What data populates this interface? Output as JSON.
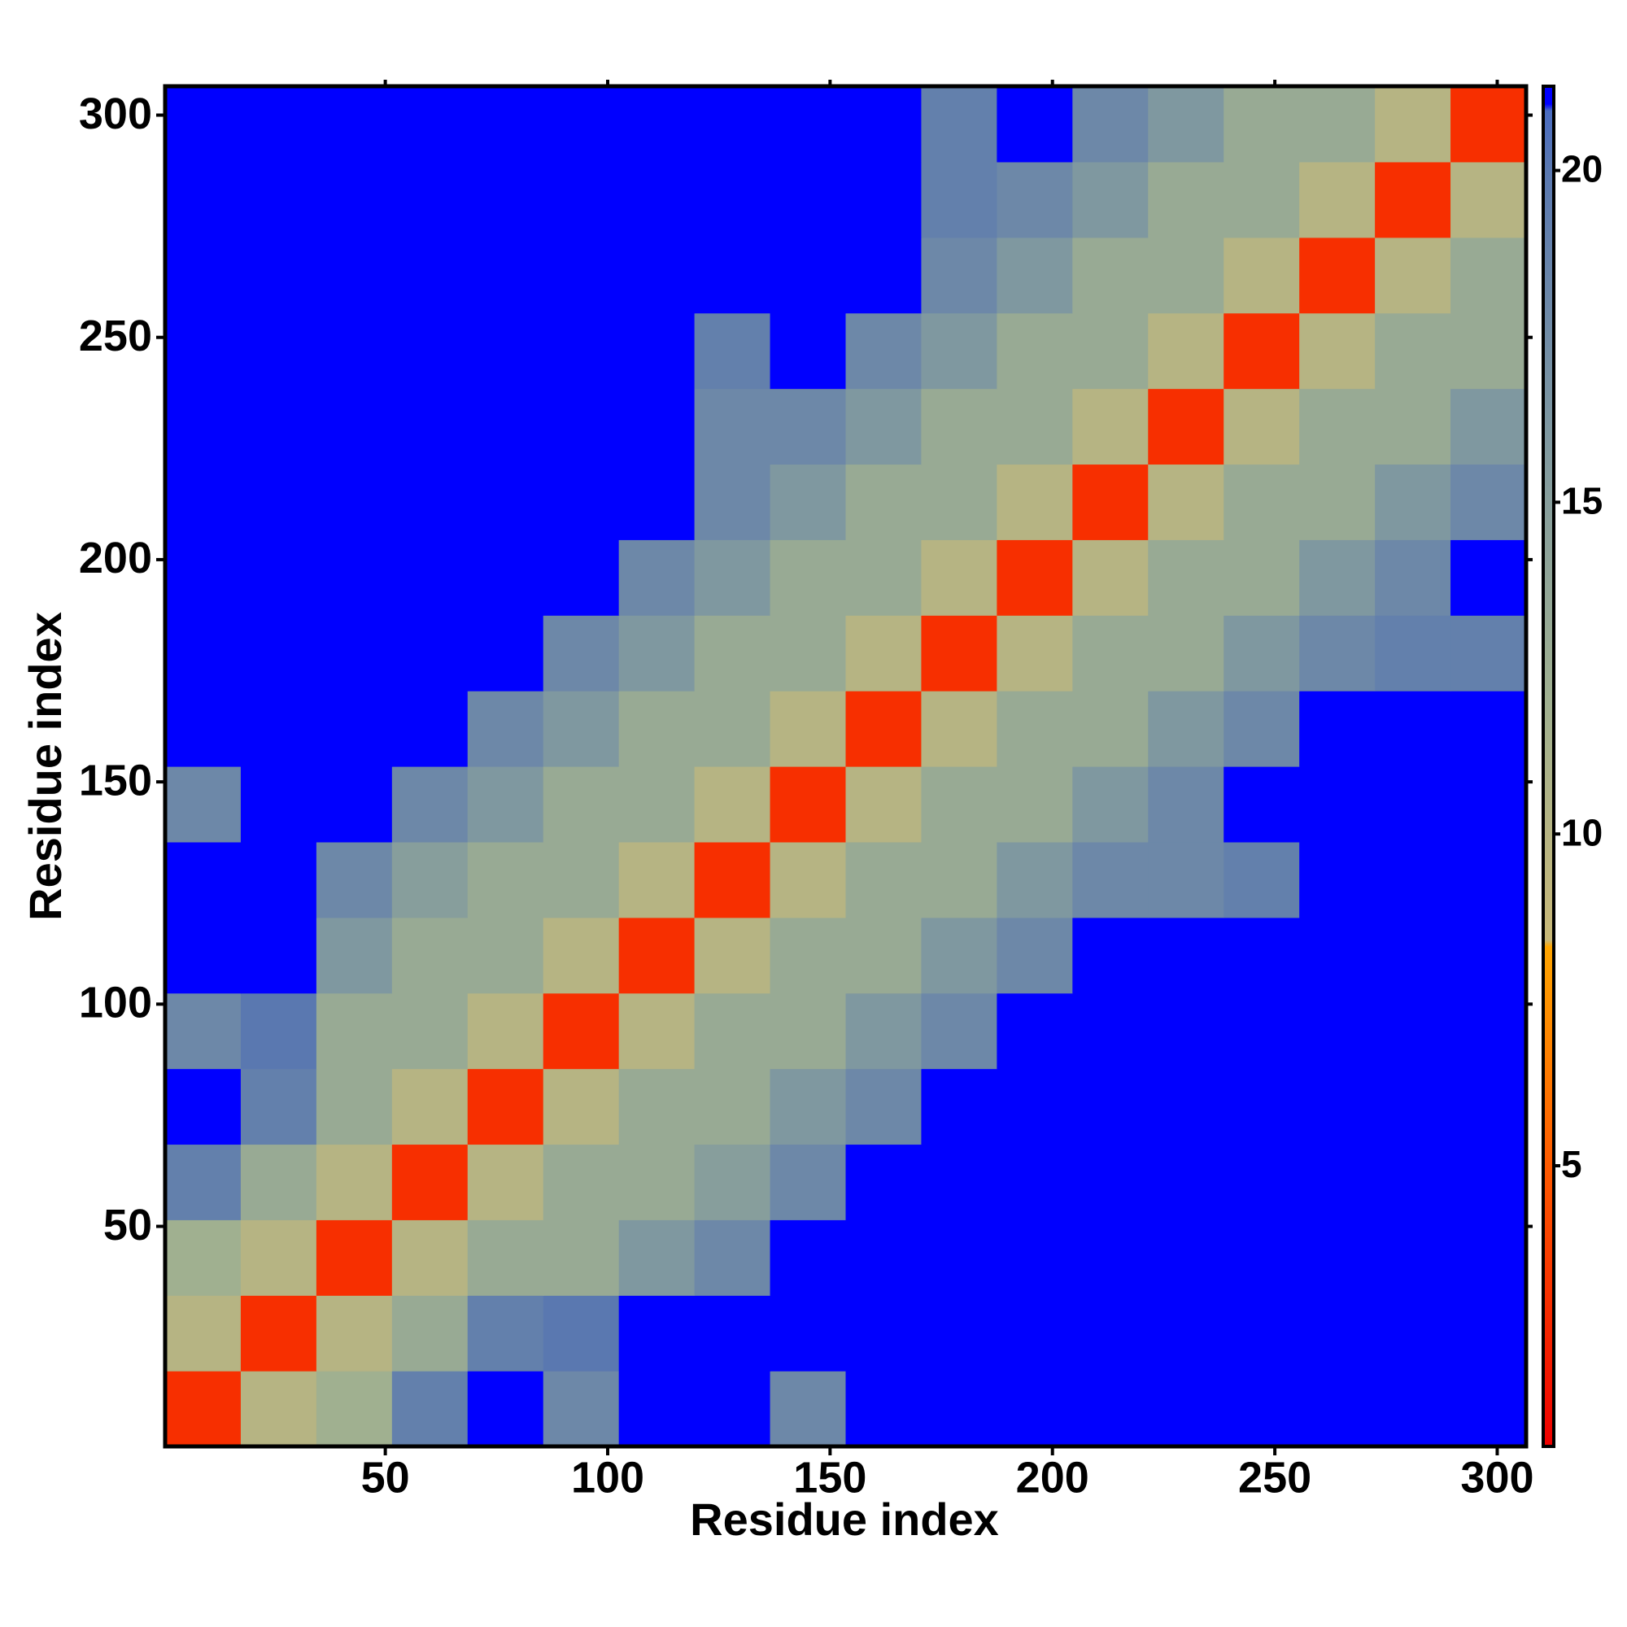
{
  "chart_data": {
    "type": "heatmap",
    "xlabel": "Residue index",
    "ylabel": "Residue index",
    "x_bins": [
      0.5,
      17.5,
      34.5,
      51.5,
      68.5,
      85.5,
      102.5,
      119.5,
      136.5,
      153.5,
      170.5,
      187.5,
      204.5,
      221.5,
      238.5,
      255.5,
      272.5,
      289.5,
      306.5
    ],
    "y_bins": [
      0.5,
      17.5,
      34.5,
      51.5,
      68.5,
      85.5,
      102.5,
      119.5,
      136.5,
      153.5,
      170.5,
      187.5,
      204.5,
      221.5,
      238.5,
      255.5,
      272.5,
      289.5,
      306.5
    ],
    "z": [
      [
        3,
        10,
        12,
        19,
        21.2,
        18,
        21.2,
        21.2,
        18,
        21.2,
        21.2,
        21.2,
        21.2,
        21.2,
        21.2,
        21.2,
        21.2,
        21.2
      ],
      [
        10,
        3,
        10,
        13,
        19,
        20,
        21.2,
        21.2,
        21.2,
        21.2,
        21.2,
        21.2,
        21.2,
        21.2,
        21.2,
        21.2,
        21.2,
        21.2
      ],
      [
        12,
        10,
        3,
        10,
        13,
        13,
        16,
        18,
        21.2,
        21.2,
        21.2,
        21.2,
        21.2,
        21.2,
        21.2,
        21.2,
        21.2,
        21.2
      ],
      [
        19,
        13,
        10,
        3,
        10,
        13,
        13,
        15,
        18,
        21.2,
        21.2,
        21.2,
        21.2,
        21.2,
        21.2,
        21.2,
        21.2,
        21.2
      ],
      [
        21.2,
        19,
        13,
        10,
        3,
        10,
        13,
        13,
        16,
        18,
        21.2,
        21.2,
        21.2,
        21.2,
        21.2,
        21.2,
        21.2,
        21.2
      ],
      [
        18,
        20,
        13,
        13,
        10,
        3,
        10,
        13,
        13,
        16,
        18,
        21.2,
        21.2,
        21.2,
        21.2,
        21.2,
        21.2,
        21.2
      ],
      [
        21.2,
        21.2,
        16,
        13,
        13,
        10,
        3,
        10,
        13,
        13,
        16,
        18,
        21.2,
        21.2,
        21.2,
        21.2,
        21.2,
        21.2
      ],
      [
        21.2,
        21.2,
        18,
        15,
        13,
        13,
        10,
        3,
        10,
        13,
        13,
        16,
        18,
        18,
        19,
        21.2,
        21.2,
        21.2
      ],
      [
        18,
        21.2,
        21.2,
        18,
        16,
        13,
        13,
        10,
        3,
        10,
        13,
        13,
        16,
        18,
        21.2,
        21.2,
        21.2,
        21.2
      ],
      [
        21.2,
        21.2,
        21.2,
        21.2,
        18,
        16,
        13,
        13,
        10,
        3,
        10,
        13,
        13,
        16,
        18,
        21.2,
        21.2,
        21.2
      ],
      [
        21.2,
        21.2,
        21.2,
        21.2,
        21.2,
        18,
        16,
        13,
        13,
        10,
        3,
        10,
        13,
        13,
        16,
        18,
        19,
        19
      ],
      [
        21.2,
        21.2,
        21.2,
        21.2,
        21.2,
        21.2,
        18,
        16,
        13,
        13,
        10,
        3,
        10,
        13,
        13,
        16,
        18,
        21.2
      ],
      [
        21.2,
        21.2,
        21.2,
        21.2,
        21.2,
        21.2,
        21.2,
        18,
        16,
        13,
        13,
        10,
        3,
        10,
        13,
        13,
        16,
        18
      ],
      [
        21.2,
        21.2,
        21.2,
        21.2,
        21.2,
        21.2,
        21.2,
        18,
        18,
        16,
        13,
        13,
        10,
        3,
        10,
        13,
        13,
        16
      ],
      [
        21.2,
        21.2,
        21.2,
        21.2,
        21.2,
        21.2,
        21.2,
        19,
        21.2,
        18,
        16,
        13,
        13,
        10,
        3,
        10,
        13,
        13
      ],
      [
        21.2,
        21.2,
        21.2,
        21.2,
        21.2,
        21.2,
        21.2,
        21.2,
        21.2,
        21.2,
        18,
        16,
        13,
        13,
        10,
        3,
        10,
        13
      ],
      [
        21.2,
        21.2,
        21.2,
        21.2,
        21.2,
        21.2,
        21.2,
        21.2,
        21.2,
        21.2,
        19,
        18,
        16,
        13,
        13,
        10,
        3,
        10
      ],
      [
        21.2,
        21.2,
        21.2,
        21.2,
        21.2,
        21.2,
        21.2,
        21.2,
        21.2,
        21.2,
        19,
        21.2,
        18,
        16,
        13,
        13,
        10,
        3
      ]
    ],
    "xlim": [
      0.5,
      306.5
    ],
    "ylim": [
      0.5,
      306.5
    ],
    "xticks": [
      50,
      100,
      150,
      200,
      250,
      300
    ],
    "yticks": [
      50,
      100,
      150,
      200,
      250,
      300
    ],
    "colorbar": {
      "lim": [
        0.77,
        21.27
      ],
      "ticks": [
        5,
        10,
        15,
        20
      ],
      "colorscale": [
        [
          0.77,
          "#ee0000"
        ],
        [
          5,
          "#ff5a00"
        ],
        [
          8.3,
          "#ffa500"
        ],
        [
          8.4,
          "#c8b878"
        ],
        [
          12,
          "#a0b090"
        ],
        [
          16,
          "#7f98a0"
        ],
        [
          20,
          "#5a78b0"
        ],
        [
          20.9,
          "#4a6cc0"
        ],
        [
          21,
          "#0000ff"
        ],
        [
          21.27,
          "#0000ff"
        ]
      ]
    }
  }
}
